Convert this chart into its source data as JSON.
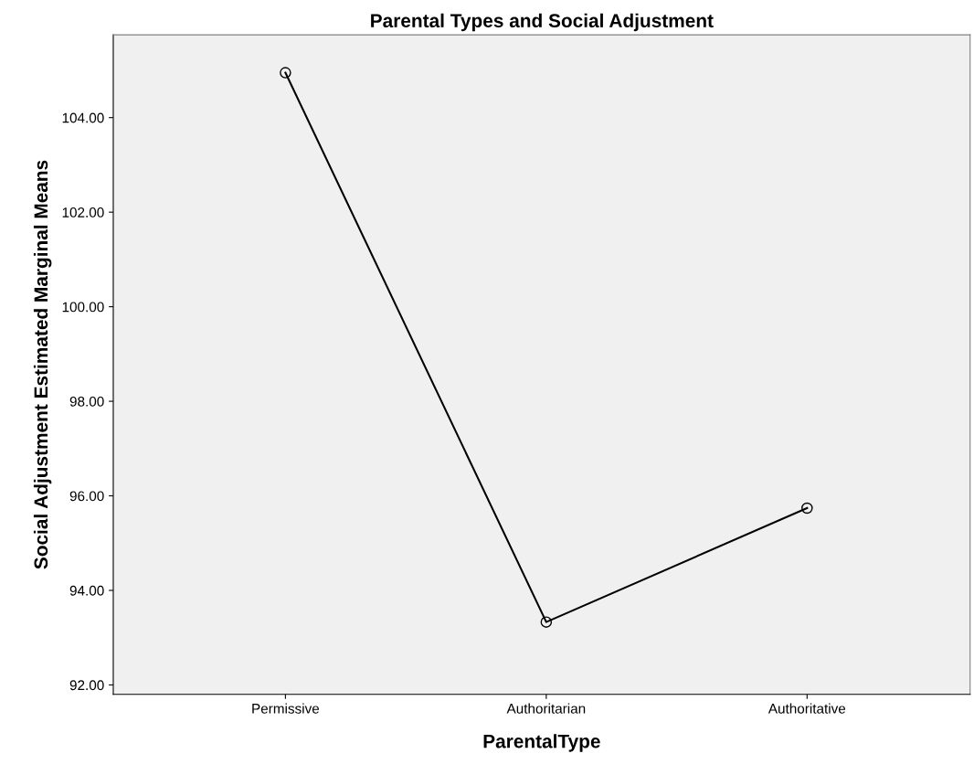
{
  "chart_data": {
    "type": "line",
    "title": "Parental Types and Social Adjustment",
    "xlabel": "ParentalType",
    "ylabel": "Social Adjustment Estimated Marginal Means",
    "categories": [
      "Permissive",
      "Authoritarian",
      "Authoritative"
    ],
    "series": [
      {
        "color": "#000000",
        "values": [
          104.95,
          93.33,
          95.74
        ]
      }
    ],
    "ylim": [
      91.8,
      105.75
    ],
    "yticks": [
      {
        "value": 92,
        "label": "92.00"
      },
      {
        "value": 94,
        "label": "94.00"
      },
      {
        "value": 96,
        "label": "96.00"
      },
      {
        "value": 98,
        "label": "98.00"
      },
      {
        "value": 100,
        "label": "100.00"
      },
      {
        "value": 102,
        "label": "102.00"
      },
      {
        "value": 104,
        "label": "104.00"
      }
    ],
    "grid": false,
    "marker": "circle",
    "line_style": "solid"
  }
}
